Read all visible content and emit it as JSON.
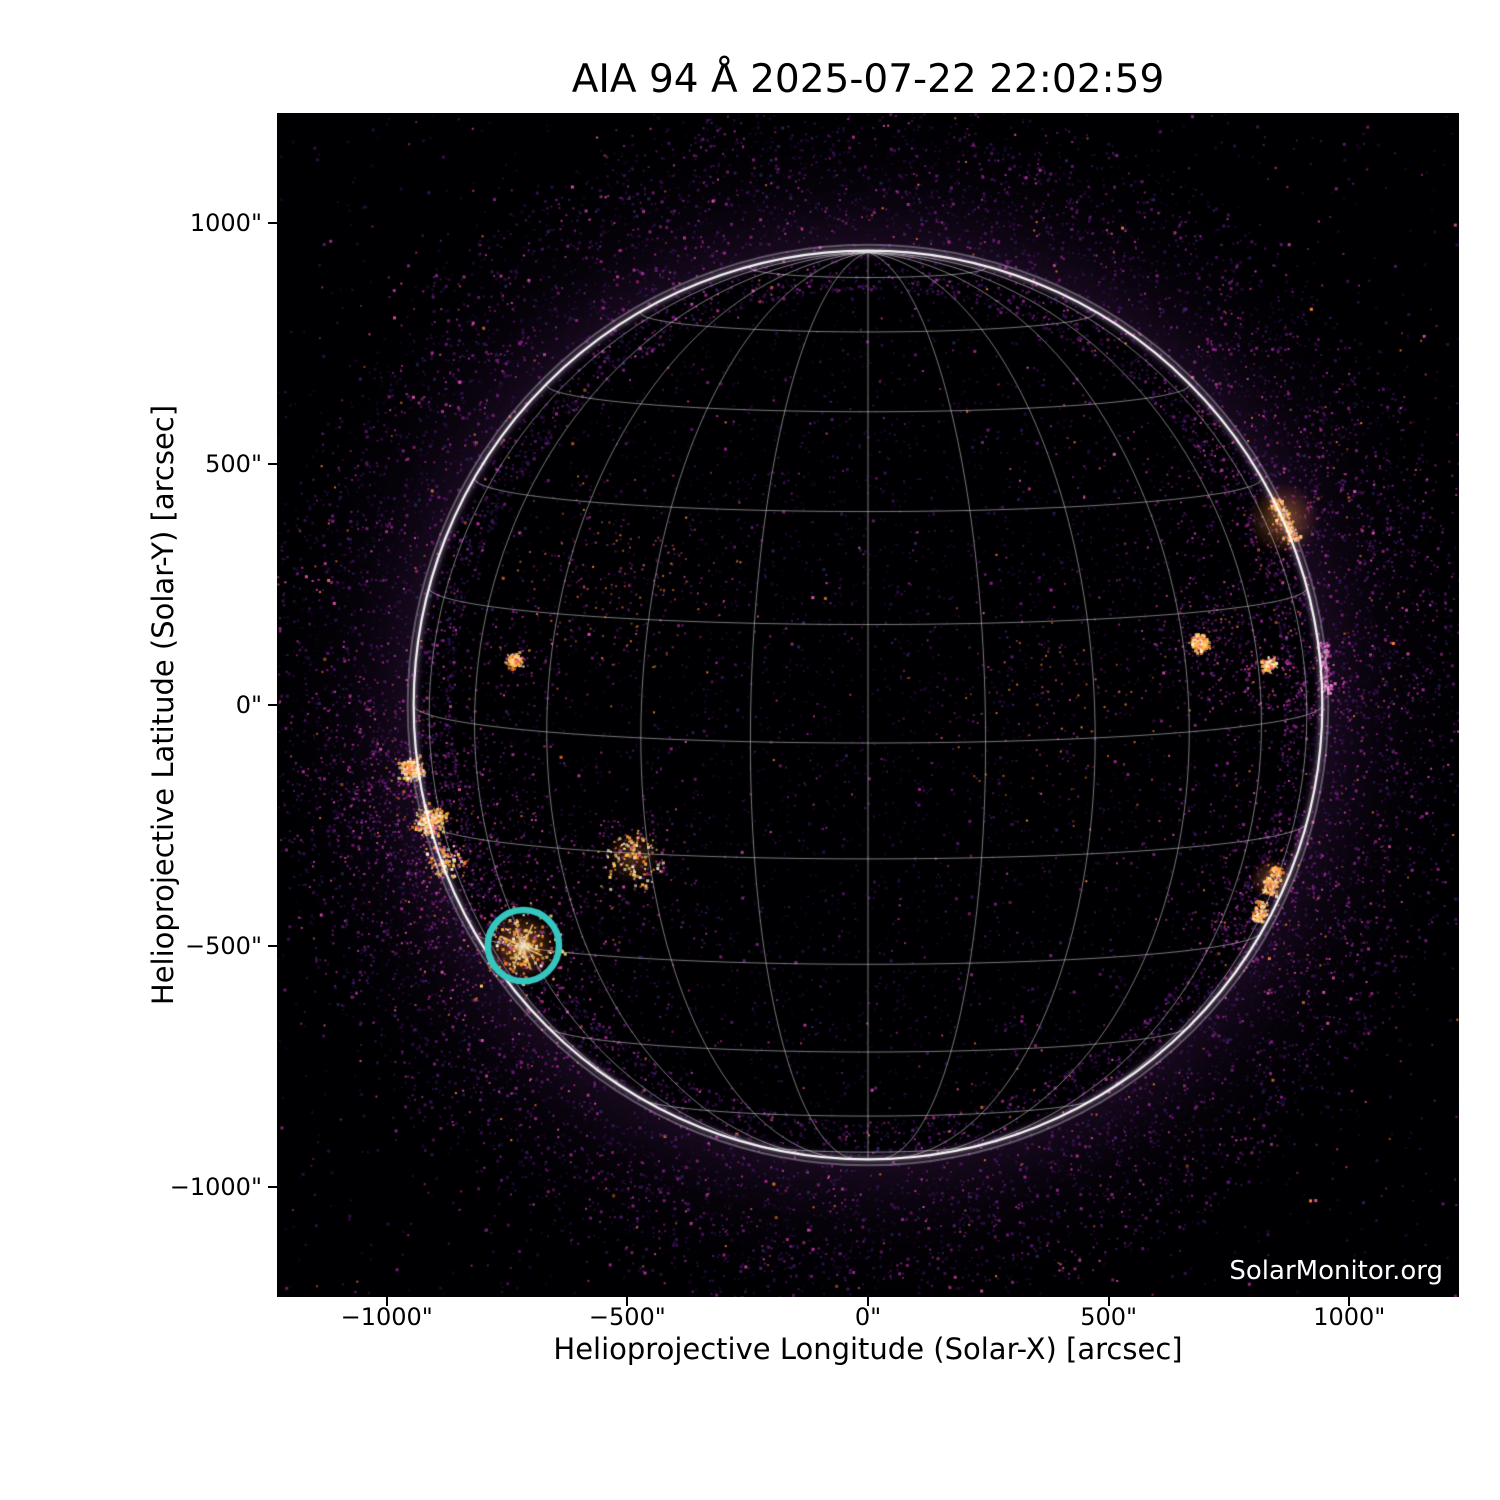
{
  "chart_data": {
    "type": "heatmap",
    "description": "SDO/AIA 94 Angstrom full-disk solar EUV image with heliographic grid overlay",
    "title": "AIA 94 Å 2025-07-22 22:02:59",
    "xlabel": "Helioprojective Longitude (Solar-X) [arcsec]",
    "ylabel": "Helioprojective Latitude (Solar-Y) [arcsec]",
    "watermark": "SolarMonitor.org",
    "xlim": [
      -1228,
      1228
    ],
    "ylim": [
      -1228,
      1228
    ],
    "x_ticks": [
      {
        "value": -1000,
        "label": "−1000\""
      },
      {
        "value": -500,
        "label": "−500\""
      },
      {
        "value": 0,
        "label": "0\""
      },
      {
        "value": 500,
        "label": "500\""
      },
      {
        "value": 1000,
        "label": "1000\""
      }
    ],
    "y_ticks": [
      {
        "value": 1000,
        "label": "1000\""
      },
      {
        "value": 500,
        "label": "500\""
      },
      {
        "value": 0,
        "label": "0\""
      },
      {
        "value": -500,
        "label": "−500\""
      },
      {
        "value": -1000,
        "label": "−1000\""
      }
    ],
    "solar_radius_arcsec": 944,
    "grid": {
      "spacing_deg": 15,
      "b0_deg": 4.8,
      "line_color": "rgba(230,230,230,0.52)",
      "limb_color": "rgba(252,252,252,0.95)",
      "outer_limb_color": "rgba(255,255,255,0.30)"
    },
    "background_color": "#000002",
    "annotation_circle": {
      "x_arcsec": -716,
      "y_arcsec": -499,
      "radius_arcsec": 74,
      "color": "#35c6c0",
      "stroke_px": 6.5
    },
    "active_regions": [
      {
        "name": "circled-flare-region",
        "x": -718,
        "y": -501,
        "type": "flare",
        "size": 80,
        "intensity": 1.0,
        "halo": 150
      },
      {
        "name": "east-limb-spot-a",
        "x": -950,
        "y": -131,
        "type": "cluster",
        "size": 26,
        "intensity": 0.95,
        "halo": 95
      },
      {
        "name": "east-limb-spot-b",
        "x": -911,
        "y": -241,
        "type": "cluster",
        "size": 34,
        "intensity": 1.0,
        "halo": 115
      },
      {
        "name": "east-limb-trail",
        "x": -880,
        "y": -322,
        "type": "cluster",
        "size": 42,
        "intensity": 0.42,
        "halo": 80
      },
      {
        "name": "southeast-dot-cluster",
        "x": -489,
        "y": -316,
        "type": "cluster",
        "size": 64,
        "intensity": 0.55,
        "halo": 60
      },
      {
        "name": "plage-speckle-field",
        "x": -504,
        "y": 239,
        "type": "field",
        "size": 115,
        "intensity": 0.55,
        "halo": 0
      },
      {
        "name": "small-east-spot",
        "x": -737,
        "y": 94,
        "type": "cluster",
        "size": 18,
        "intensity": 0.35,
        "halo": 45
      },
      {
        "name": "northwest-limb-string",
        "x": 863,
        "y": 386,
        "type": "streak",
        "size": 100,
        "intensity": 1.0,
        "halo": 160,
        "dir_deg": 64
      },
      {
        "name": "west-spot",
        "x": 687,
        "y": 131,
        "type": "cluster",
        "size": 20,
        "intensity": 0.85,
        "halo": 55
      },
      {
        "name": "west-magenta-loop",
        "x": 841,
        "y": 48,
        "type": "ring",
        "size": 58,
        "intensity": 0.55,
        "halo": 95
      },
      {
        "name": "west-loop-spot",
        "x": 832,
        "y": 85,
        "type": "cluster",
        "size": 16,
        "intensity": 0.35,
        "halo": 0
      },
      {
        "name": "southwest-limb-flame-a",
        "x": 838,
        "y": -362,
        "type": "streak",
        "size": 60,
        "intensity": 0.85,
        "halo": 120,
        "dir_deg": 110
      },
      {
        "name": "southwest-limb-flame-b",
        "x": 812,
        "y": -425,
        "type": "streak",
        "size": 42,
        "intensity": 0.55,
        "halo": 70,
        "dir_deg": 105
      },
      {
        "name": "west-limb-pink-glow",
        "x": 948,
        "y": 80,
        "type": "streak",
        "size": 110,
        "intensity": 0.35,
        "halo": 100,
        "dir_deg": 86,
        "pink": true
      },
      {
        "name": "center-west-faint-field",
        "x": 380,
        "y": 5,
        "type": "field",
        "size": 125,
        "intensity": 0.28,
        "halo": 0
      }
    ],
    "noise": {
      "seed": 1234,
      "base_count": 10000,
      "annulus_count": 10000,
      "disk_count": 3000
    }
  }
}
